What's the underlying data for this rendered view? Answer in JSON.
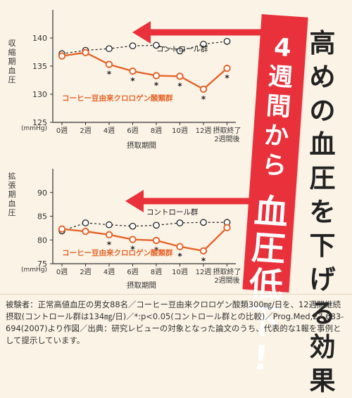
{
  "headline": "高めの\n血圧を\n下げる\n効果",
  "banner": {
    "small": "4\n週\n間\nか\nら",
    "big": "血\n圧\n低\n下\n!"
  },
  "footnote": "被験者：正常高値血圧の男女88名／コーヒー豆由来クロロゲン酸類300㎎/日を、12週間継続摂取(コントロール群は134㎎/日)／*:p<0.05(コントロール群との比較)／Prog.Med,27,683-694(2007)より作図／出典：研究レビューの対象となった論文のうち、代表的な1報を事例として提示しています。",
  "colors": {
    "control": "#222222",
    "test": "#e5652a",
    "banner": "#e8313a",
    "background": "#fbf3e6"
  },
  "chart_data": [
    {
      "type": "line",
      "ylabel": "収縮期血圧",
      "unit": "(mmHg)",
      "xlabel": "摂取期間",
      "ylim": [
        125,
        145
      ],
      "yticks": [
        125,
        130,
        135,
        140
      ],
      "categories": [
        "0週",
        "2週",
        "4週",
        "6週",
        "8週",
        "10週",
        "12週",
        "摂取終了\n2週間後"
      ],
      "series": [
        {
          "name": "コントロール群",
          "values": [
            137.2,
            137.8,
            138.1,
            138.6,
            138.7,
            137.7,
            138.9,
            139.4
          ]
        },
        {
          "name": "コーヒー豆由来クロロゲン酸類群",
          "values": [
            136.8,
            137.4,
            135.3,
            134.1,
            133.3,
            133.2,
            130.9,
            134.6
          ]
        }
      ],
      "significant": [
        "",
        "",
        "*",
        "*",
        "*",
        "*",
        "*",
        "*"
      ]
    },
    {
      "type": "line",
      "ylabel": "拡張期血圧",
      "unit": "(mmHg)",
      "xlabel": "摂取期間",
      "ylim": [
        75,
        95
      ],
      "yticks": [
        75,
        80,
        85,
        90
      ],
      "categories": [
        "0週",
        "2週",
        "4週",
        "6週",
        "8週",
        "10週",
        "12週",
        "摂取終了\n2週間後"
      ],
      "series": [
        {
          "name": "コントロール群",
          "values": [
            81.9,
            83.6,
            83.2,
            82.9,
            83.1,
            83.6,
            83.7,
            83.7
          ]
        },
        {
          "name": "コーヒー豆由来クロロゲン酸類群",
          "values": [
            82.3,
            81.8,
            81.1,
            80.1,
            79.9,
            78.6,
            77.7,
            82.6
          ]
        }
      ],
      "significant": [
        "",
        "",
        "*",
        "*",
        "*",
        "*",
        "*",
        ""
      ]
    }
  ]
}
